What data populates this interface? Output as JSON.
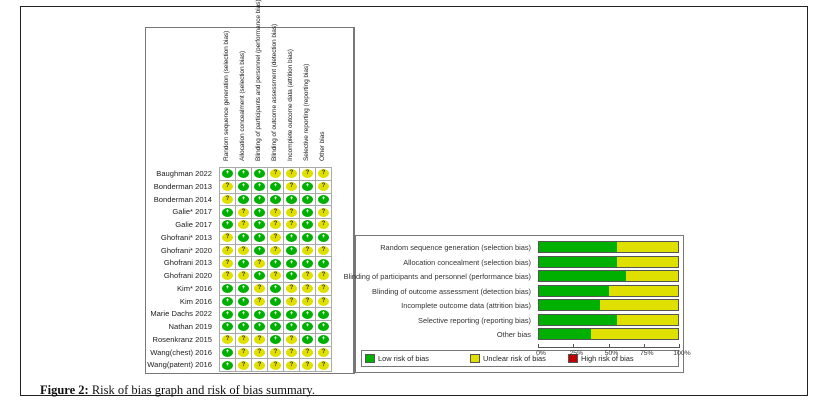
{
  "caption": {
    "prefix": "Figure 2:",
    "text": " Risk of bias graph and risk of bias summary."
  },
  "summary": {
    "domains": [
      "Random sequence generation (selection bias)",
      "Allocation concealment (selection bias)",
      "Blinding of participants and personnel (performance bias)",
      "Blinding of outcome assessment (detection bias)",
      "Incomplete outcome data (attrition bias)",
      "Selective reporting (reporting bias)",
      "Other bias"
    ],
    "studies": [
      {
        "name": "Baughman 2022",
        "ratings": [
          "+",
          "+",
          "+",
          "?",
          "?",
          "?",
          "?"
        ]
      },
      {
        "name": "Bonderman  2013",
        "ratings": [
          "?",
          "+",
          "+",
          "+",
          "?",
          "+",
          "?"
        ]
      },
      {
        "name": "Bonderman 2014",
        "ratings": [
          "?",
          "+",
          "+",
          "+",
          "+",
          "+",
          "+"
        ]
      },
      {
        "name": "Galie* 2017",
        "ratings": [
          "+",
          "?",
          "+",
          "?",
          "?",
          "+",
          "?"
        ]
      },
      {
        "name": "Galie 2017",
        "ratings": [
          "+",
          "?",
          "+",
          "?",
          "?",
          "+",
          "?"
        ]
      },
      {
        "name": "Ghofrani* 2013",
        "ratings": [
          "?",
          "+",
          "+",
          "?",
          "+",
          "+",
          "+"
        ]
      },
      {
        "name": "Ghofrani* 2020",
        "ratings": [
          "?",
          "?",
          "+",
          "?",
          "+",
          "?",
          "?"
        ]
      },
      {
        "name": "Ghofrani 2013",
        "ratings": [
          "?",
          "+",
          "?",
          "+",
          "+",
          "+",
          "+"
        ]
      },
      {
        "name": "Ghofrani 2020",
        "ratings": [
          "?",
          "?",
          "+",
          "?",
          "+",
          "?",
          "?"
        ]
      },
      {
        "name": "Kim* 2016",
        "ratings": [
          "+",
          "+",
          "?",
          "+",
          "?",
          "?",
          "?"
        ]
      },
      {
        "name": "Kim 2016",
        "ratings": [
          "+",
          "+",
          "?",
          "+",
          "?",
          "?",
          "?"
        ]
      },
      {
        "name": "Marie Dachs 2022",
        "ratings": [
          "+",
          "+",
          "+",
          "+",
          "+",
          "+",
          "+"
        ]
      },
      {
        "name": "Nathan 2019",
        "ratings": [
          "+",
          "+",
          "+",
          "+",
          "+",
          "+",
          "+"
        ]
      },
      {
        "name": "Rosenkranz 2015",
        "ratings": [
          "?",
          "?",
          "?",
          "+",
          "?",
          "+",
          "+"
        ]
      },
      {
        "name": "Wang(chest) 2016",
        "ratings": [
          "+",
          "?",
          "?",
          "?",
          "?",
          "?",
          "?"
        ]
      },
      {
        "name": "Wang(patent) 2016",
        "ratings": [
          "+",
          "?",
          "?",
          "?",
          "?",
          "?",
          "?"
        ]
      }
    ]
  },
  "colors": {
    "low": "#00b000",
    "unclear": "#e0e000",
    "high": "#c00000"
  },
  "legend": [
    {
      "key": "low",
      "label": "Low risk of bias"
    },
    {
      "key": "unclear",
      "label": "Unclear risk of bias"
    },
    {
      "key": "high",
      "label": "High risk of bias"
    }
  ],
  "chart_data": {
    "type": "bar",
    "orientation": "horizontal-stacked-percent",
    "title": "Risk of bias graph",
    "categories": [
      "Random sequence generation (selection bias)",
      "Allocation concealment (selection bias)",
      "Blinding of participants and personnel (performance bias)",
      "Blinding of outcome assessment (detection bias)",
      "Incomplete outcome data (attrition bias)",
      "Selective reporting (reporting bias)",
      "Other bias"
    ],
    "series": [
      {
        "name": "Low risk of bias",
        "values": [
          56.25,
          56.25,
          62.5,
          50,
          43.75,
          56.25,
          37.5
        ]
      },
      {
        "name": "Unclear risk of bias",
        "values": [
          43.75,
          43.75,
          37.5,
          50,
          56.25,
          43.75,
          62.5
        ]
      },
      {
        "name": "High risk of bias",
        "values": [
          0,
          0,
          0,
          0,
          0,
          0,
          0
        ]
      }
    ],
    "xlim": [
      0,
      100
    ],
    "xticks": [
      "0%",
      "25%",
      "50%",
      "75%",
      "100%"
    ],
    "xlabel": "",
    "ylabel": "",
    "legend_position": "bottom",
    "grid": false
  }
}
